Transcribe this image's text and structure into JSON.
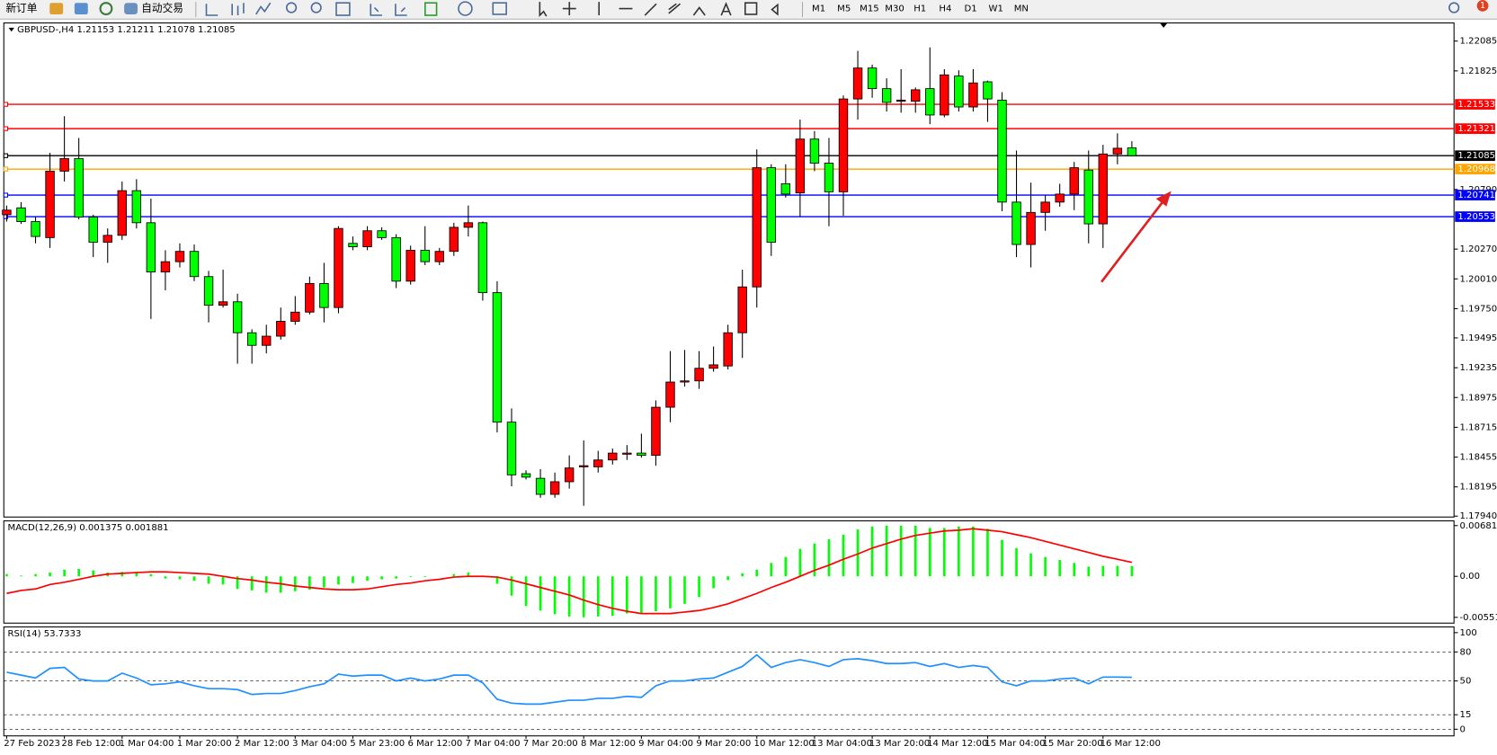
{
  "toolbar": {
    "buttons": [
      "新订单",
      "自动交易"
    ],
    "timeframes": [
      "M1",
      "M5",
      "M15",
      "M30",
      "H1",
      "H4",
      "D1",
      "W1",
      "MN"
    ],
    "badge": 1
  },
  "chart_data": [
    {
      "type": "candlestick",
      "title": "GBPUSD-,H4  1.21153 1.21211 1.21078 1.21085",
      "categories": [
        "27 Feb 2023",
        null,
        null,
        null,
        "28 Feb 12:00",
        null,
        null,
        null,
        "1 Mar 04:00",
        null,
        null,
        null,
        "1 Mar 20:00",
        null,
        null,
        null,
        "2 Mar 12:00",
        null,
        null,
        null,
        "3 Mar 04:00",
        null,
        null,
        null,
        "5 Mar 23:00",
        null,
        null,
        null,
        "6 Mar 12:00",
        null,
        null,
        null,
        "7 Mar 04:00",
        null,
        null,
        null,
        "7 Mar 20:00",
        null,
        null,
        null,
        "8 Mar 12:00",
        null,
        null,
        null,
        "9 Mar 04:00",
        null,
        null,
        null,
        "9 Mar 20:00",
        null,
        null,
        null,
        "10 Mar 12:00",
        null,
        null,
        null,
        "13 Mar 04:00",
        null,
        null,
        null,
        "13 Mar 20:00",
        null,
        null,
        null,
        "14 Mar 12:00",
        null,
        null,
        null,
        "15 Mar 04:00",
        null,
        null,
        null,
        "15 Mar 20:00",
        null,
        null,
        null,
        "16 Mar 12:00",
        null,
        null
      ],
      "open": [
        1.2057,
        1.2063,
        1.2051,
        1.2037,
        1.2095,
        1.2106,
        1.2055,
        1.2033,
        1.2039,
        1.2078,
        1.205,
        1.2007,
        1.2016,
        1.2025,
        1.2003,
        1.1978,
        1.1981,
        1.1954,
        1.1943,
        1.1951,
        1.1964,
        1.1972,
        1.1997,
        1.1976,
        1.2032,
        1.2029,
        1.2043,
        1.2037,
        1.1999,
        1.2026,
        1.2016,
        1.2025,
        1.2046,
        1.205,
        1.1989,
        1.1876,
        1.1831,
        1.1827,
        1.1813,
        1.1824,
        1.1837,
        1.1837,
        1.1843,
        1.1848,
        1.1849,
        1.1847,
        1.1889,
        1.1911,
        1.1912,
        1.1923,
        1.1925,
        1.1954,
        1.1994,
        1.2098,
        1.2084,
        1.2076,
        1.2123,
        1.2102,
        1.2077,
        1.2158,
        1.2185,
        1.2167,
        1.2156,
        1.2156,
        1.2167,
        1.2144,
        1.2178,
        1.2151,
        1.2173,
        1.2157,
        1.2068,
        1.2031,
        1.2059,
        1.2068,
        1.2075,
        1.2096,
        1.2049,
        1.211,
        1.21153
      ],
      "high": [
        1.2065,
        1.2068,
        1.2055,
        1.2111,
        1.2143,
        1.2124,
        1.2057,
        1.2045,
        1.2086,
        1.2088,
        1.2071,
        1.2026,
        1.2032,
        1.2031,
        1.2008,
        1.2009,
        1.1988,
        1.1957,
        1.1961,
        1.1976,
        1.1986,
        1.2003,
        1.2015,
        1.2047,
        1.2038,
        1.2047,
        1.2046,
        1.204,
        1.203,
        1.2047,
        1.2028,
        1.205,
        1.2065,
        1.2051,
        1.1999,
        1.1888,
        1.1834,
        1.1835,
        1.1832,
        1.1847,
        1.186,
        1.1851,
        1.1853,
        1.1856,
        1.1866,
        1.1895,
        1.1938,
        1.1939,
        1.1938,
        1.1942,
        1.1961,
        1.2009,
        1.2114,
        1.2101,
        1.2101,
        1.214,
        1.213,
        1.2124,
        1.2161,
        1.22,
        1.2188,
        1.2176,
        1.2184,
        1.2168,
        1.2203,
        1.2184,
        1.2183,
        1.2184,
        1.2174,
        1.2164,
        1.2113,
        1.2085,
        1.2074,
        1.2084,
        1.2103,
        1.2113,
        1.2118,
        1.2128,
        1.21211
      ],
      "low": [
        1.2051,
        1.2049,
        1.2032,
        1.2028,
        1.2086,
        1.2053,
        1.202,
        1.2015,
        1.2035,
        1.2045,
        1.1966,
        1.1991,
        1.2011,
        1.1999,
        1.1963,
        1.1976,
        1.1927,
        1.1927,
        1.1936,
        1.1948,
        1.1961,
        1.197,
        1.1963,
        1.1971,
        1.2026,
        1.2026,
        1.2035,
        1.1993,
        1.1996,
        1.2013,
        1.2013,
        1.2021,
        1.2038,
        1.1982,
        1.1867,
        1.182,
        1.1826,
        1.181,
        1.181,
        1.1818,
        1.1803,
        1.1832,
        1.1839,
        1.1843,
        1.1845,
        1.1838,
        1.1876,
        1.1907,
        1.1905,
        1.192,
        1.1922,
        1.1932,
        1.1976,
        1.2021,
        1.2072,
        1.2055,
        1.2095,
        1.2047,
        1.2056,
        1.214,
        1.2159,
        1.2147,
        1.2146,
        1.2146,
        1.2136,
        1.2142,
        1.2147,
        1.2147,
        1.2138,
        1.206,
        1.202,
        1.2011,
        1.2043,
        1.2064,
        1.2061,
        1.2032,
        1.2028,
        1.2101,
        1.21078
      ],
      "close": [
        1.2061,
        1.2051,
        1.2038,
        1.2095,
        1.2106,
        1.2055,
        1.2033,
        1.2039,
        1.2078,
        1.205,
        1.2007,
        1.2016,
        1.2025,
        1.2003,
        1.1978,
        1.1981,
        1.1954,
        1.1943,
        1.1951,
        1.1964,
        1.1972,
        1.1997,
        1.1976,
        1.2045,
        1.2029,
        1.2043,
        1.2037,
        1.1999,
        1.2026,
        1.2016,
        1.2025,
        1.2046,
        1.205,
        1.1989,
        1.1876,
        1.183,
        1.1828,
        1.1813,
        1.1824,
        1.1836,
        1.1838,
        1.1843,
        1.1849,
        1.1849,
        1.1847,
        1.1889,
        1.1911,
        1.1912,
        1.1923,
        1.1926,
        1.1954,
        1.1994,
        1.2098,
        1.2033,
        1.2075,
        1.2123,
        1.2102,
        1.2077,
        1.2158,
        1.2185,
        1.2167,
        1.2155,
        1.2157,
        1.2166,
        1.2144,
        1.2179,
        1.2151,
        1.2172,
        1.2158,
        1.2068,
        1.2031,
        1.2059,
        1.2068,
        1.2075,
        1.2098,
        1.2049,
        1.211,
        1.2115,
        1.21085
      ],
      "up_color": "#ff0000",
      "down_color": "#00ff00",
      "ylim": [
        1.17932,
        1.22235
      ],
      "yticks": [
        1.22085,
        1.21825,
        {
          "value": 1.2079,
          "label": "1.20790"
        },
        {
          "value": 1.2027,
          "label": "1.20270"
        },
        {
          "value": 1.2001,
          "label": "1.20010"
        },
        {
          "value": 1.1975,
          "label": "1.19750"
        },
        1.19495,
        1.19235,
        1.18975,
        1.18715,
        1.18455,
        1.18195,
        {
          "value": 1.1794,
          "label": "1.17940"
        }
      ],
      "levels": [
        {
          "value": 1.21533,
          "color": "#ff0000"
        },
        {
          "value": 1.21321,
          "color": "#ff0000"
        },
        {
          "value": 1.21085,
          "color": "#000000"
        },
        {
          "value": 1.20968,
          "color": "#ffa500"
        },
        {
          "value": 1.20741,
          "color": "#0000ff"
        },
        {
          "value": 1.20553,
          "color": "#0000ff"
        }
      ],
      "grid": false
    },
    {
      "type": "macd",
      "title": "MACD(12,26,9) 0.001375 0.001881",
      "histogram": {
        "color": "#00ff00",
        "values": [
          0.0003,
          0.0001,
          0.0003,
          0.0005,
          0.0009,
          0.001,
          0.0008,
          0.0005,
          0.0006,
          0.0006,
          0.0003,
          -0.0003,
          -0.0004,
          -0.0006,
          -0.001,
          -0.0011,
          -0.0017,
          -0.0019,
          -0.0022,
          -0.0022,
          -0.002,
          -0.0018,
          -0.0015,
          -0.0011,
          -0.0009,
          -0.0006,
          -0.0004,
          -0.0003,
          -0.0001,
          -0.0001,
          0,
          0.0003,
          0.0005,
          0.0001,
          -0.001,
          -0.0026,
          -0.004,
          -0.0046,
          -0.0051,
          -0.0054,
          -0.0055,
          -0.0054,
          -0.0053,
          -0.005,
          -0.0049,
          -0.0047,
          -0.0043,
          -0.0037,
          -0.0028,
          -0.0016,
          -0.0005,
          0.0004,
          0.0009,
          0.0018,
          0.0026,
          0.0037,
          0.0044,
          0.005,
          0.0056,
          0.0063,
          0.0067,
          0.0068,
          0.0068,
          0.0068,
          0.0065,
          0.0065,
          0.0067,
          0.0067,
          0.0064,
          0.0049,
          0.0038,
          0.0031,
          0.0026,
          0.0022,
          0.0018,
          0.0013,
          0.0014,
          0.0014,
          0.001375
        ]
      },
      "signal": {
        "color": "#ff0000",
        "values": [
          -0.0023,
          -0.0019,
          -0.0017,
          -0.0011,
          -0.0008,
          -0.0004,
          0,
          0.0003,
          0.0004,
          0.0005,
          0.0006,
          0.0006,
          0.0005,
          0.0004,
          0.0003,
          0,
          -0.0003,
          -0.0005,
          -0.0008,
          -0.001,
          -0.0013,
          -0.0015,
          -0.0017,
          -0.0018,
          -0.0018,
          -0.0017,
          -0.0014,
          -0.0011,
          -0.0009,
          -0.0006,
          -0.0004,
          -0.0001,
          0,
          0,
          -0.0001,
          -0.0005,
          -0.001,
          -0.0015,
          -0.002,
          -0.0025,
          -0.0032,
          -0.0038,
          -0.0043,
          -0.0047,
          -0.005,
          -0.005,
          -0.005,
          -0.0048,
          -0.0046,
          -0.0042,
          -0.0037,
          -0.003,
          -0.0023,
          -0.0015,
          -0.0008,
          0,
          0.0008,
          0.0015,
          0.0023,
          0.003,
          0.0038,
          0.0044,
          0.005,
          0.0055,
          0.0058,
          0.0061,
          0.0062,
          0.0064,
          0.0062,
          0.006,
          0.0056,
          0.0052,
          0.0047,
          0.0042,
          0.0037,
          0.0032,
          0.0027,
          0.0023,
          0.001881
        ]
      },
      "ylim": [
        -0.00629,
        0.00733
      ],
      "yticks": [
        0.006817,
        {
          "value": 0,
          "label": "0.00"
        },
        -0.005518
      ],
      "grid": false
    },
    {
      "type": "line",
      "title": "RSI(14) 53.7333",
      "color": "#1e90ff",
      "values": [
        59,
        56,
        53,
        63,
        64,
        52,
        50,
        50,
        58,
        53,
        46,
        47,
        49,
        45,
        42,
        42,
        41,
        36,
        37,
        37,
        40,
        44,
        47,
        57,
        55,
        56,
        56,
        50,
        53,
        50,
        52,
        56,
        56,
        48,
        31,
        27,
        26,
        26,
        28,
        30,
        30,
        32,
        32,
        34,
        33,
        45,
        50,
        50,
        52,
        53,
        59,
        65,
        77,
        64,
        69,
        72,
        69,
        65,
        72,
        73,
        71,
        68,
        68,
        69,
        65,
        68,
        64,
        66,
        64,
        49,
        45,
        50,
        50,
        52,
        53,
        47,
        54,
        54,
        53.7333
      ],
      "ylim": [
        -6.9,
        105.9
      ],
      "yticks": [
        100,
        80,
        50,
        15,
        0
      ],
      "grid": true
    }
  ]
}
